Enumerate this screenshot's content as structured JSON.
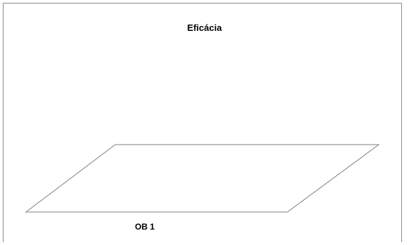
{
  "chart_data": {
    "type": "bar",
    "title": "Eficácia",
    "categories": [
      "OB 1"
    ],
    "series": [
      {
        "values": [
          0
        ]
      }
    ],
    "grid": false,
    "legend": "none",
    "colors": {
      "frame": "#8c8c8c",
      "floor": "#7f7f7f"
    }
  }
}
